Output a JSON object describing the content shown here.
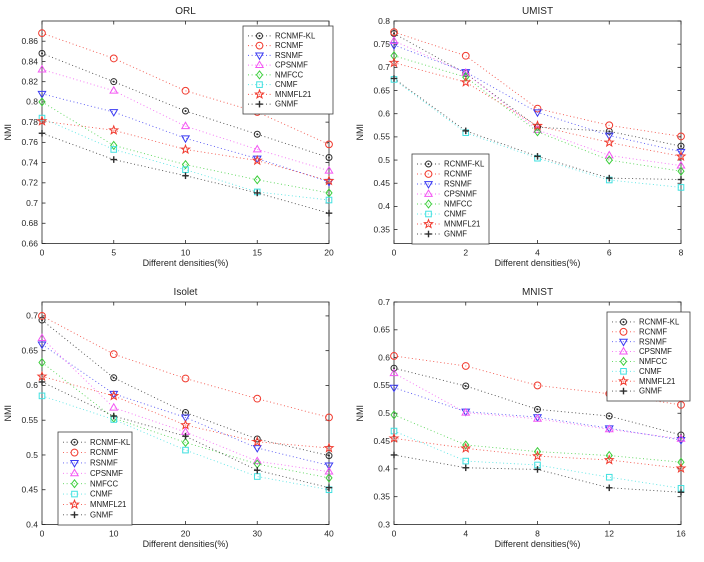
{
  "figure": {
    "background": "#ffffff",
    "axis_color": "#262626",
    "tick_label_color": "#262626",
    "legend_border_color": "#404040",
    "series_styles": [
      {
        "name": "RCNMF-KL",
        "color": "#2e2e2e",
        "marker": "circledot"
      },
      {
        "name": "RCNMF",
        "color": "#f13a2e",
        "marker": "circle"
      },
      {
        "name": "RSNMF",
        "color": "#3a3af2",
        "marker": "triangle-down"
      },
      {
        "name": "CPSNMF",
        "color": "#f356f3",
        "marker": "triangle-up"
      },
      {
        "name": "NMFCC",
        "color": "#3ccf3c",
        "marker": "diamond"
      },
      {
        "name": "CNMF",
        "color": "#40e0e0",
        "marker": "square"
      },
      {
        "name": "MNMFL21",
        "color": "#f13a2e",
        "marker": "star"
      },
      {
        "name": "GNMF",
        "color": "#2e2e2e",
        "marker": "plus"
      }
    ]
  },
  "chart_data": [
    {
      "type": "line",
      "title": "ORL",
      "xlabel": "Different densities(%)",
      "ylabel": "NMI",
      "x": [
        0,
        5,
        10,
        15,
        20
      ],
      "xticks": [
        0,
        5,
        10,
        15,
        20
      ],
      "yticks": [
        0.66,
        0.68,
        0.7,
        0.72,
        0.74,
        0.76,
        0.78,
        0.8,
        0.82,
        0.84,
        0.86
      ],
      "xlim": [
        0,
        20
      ],
      "ylim": [
        0.66,
        0.88
      ],
      "grid": false,
      "line_style": "dotted",
      "legend_pos": "northeast",
      "legend_box": [
        243,
        26,
        90,
        88
      ],
      "series": [
        {
          "name": "RCNMF-KL",
          "values": [
            0.848,
            0.82,
            0.791,
            0.768,
            0.745
          ]
        },
        {
          "name": "RCNMF",
          "values": [
            0.868,
            0.843,
            0.811,
            0.79,
            0.758
          ]
        },
        {
          "name": "RSNMF",
          "values": [
            0.808,
            0.79,
            0.764,
            0.744,
            0.721
          ]
        },
        {
          "name": "CPSNMF",
          "values": [
            0.832,
            0.811,
            0.776,
            0.753,
            0.732
          ]
        },
        {
          "name": "NMFCC",
          "values": [
            0.8,
            0.757,
            0.738,
            0.723,
            0.71
          ]
        },
        {
          "name": "CNMF",
          "values": [
            0.784,
            0.753,
            0.733,
            0.711,
            0.703
          ]
        },
        {
          "name": "MNMFL21",
          "values": [
            0.781,
            0.772,
            0.753,
            0.742,
            0.722
          ]
        },
        {
          "name": "GNMF",
          "values": [
            0.769,
            0.743,
            0.727,
            0.71,
            0.69
          ]
        }
      ]
    },
    {
      "type": "line",
      "title": "UMIST",
      "xlabel": "Different densities(%)",
      "ylabel": "NMI",
      "x": [
        0,
        2,
        4,
        6,
        8
      ],
      "xticks": [
        0,
        2,
        4,
        6,
        8
      ],
      "yticks": [
        0.35,
        0.4,
        0.45,
        0.5,
        0.55,
        0.6,
        0.65,
        0.7,
        0.75,
        0.8
      ],
      "xlim": [
        0,
        8
      ],
      "ylim": [
        0.32,
        0.8
      ],
      "grid": false,
      "line_style": "dotted",
      "legend_pos": "west",
      "legend_box": [
        60,
        154,
        77,
        90
      ],
      "series": [
        {
          "name": "RCNMF-KL",
          "values": [
            0.773,
            0.687,
            0.571,
            0.562,
            0.53
          ]
        },
        {
          "name": "RCNMF",
          "values": [
            0.776,
            0.725,
            0.611,
            0.575,
            0.551
          ]
        },
        {
          "name": "RSNMF",
          "values": [
            0.748,
            0.69,
            0.603,
            0.553,
            0.518
          ]
        },
        {
          "name": "CPSNMF",
          "values": [
            0.757,
            0.688,
            0.565,
            0.51,
            0.488
          ]
        },
        {
          "name": "NMFCC",
          "values": [
            0.725,
            0.679,
            0.561,
            0.5,
            0.476
          ]
        },
        {
          "name": "CNMF",
          "values": [
            0.674,
            0.559,
            0.504,
            0.457,
            0.441
          ]
        },
        {
          "name": "MNMFL21",
          "values": [
            0.71,
            0.668,
            0.574,
            0.538,
            0.508
          ]
        },
        {
          "name": "GNMF",
          "values": [
            0.676,
            0.563,
            0.508,
            0.461,
            0.458
          ]
        }
      ]
    },
    {
      "type": "line",
      "title": "Isolet",
      "xlabel": "Different densities(%)",
      "ylabel": "NMI",
      "x": [
        0,
        10,
        20,
        30,
        40
      ],
      "xticks": [
        0,
        10,
        20,
        30,
        40
      ],
      "yticks": [
        0.4,
        0.45,
        0.5,
        0.55,
        0.6,
        0.65,
        0.7
      ],
      "xlim": [
        0,
        40
      ],
      "ylim": [
        0.4,
        0.72
      ],
      "grid": false,
      "line_style": "dotted",
      "legend_pos": "southwest",
      "legend_box": [
        58,
        151,
        74,
        93
      ],
      "series": [
        {
          "name": "RCNMF-KL",
          "values": [
            0.694,
            0.611,
            0.561,
            0.523,
            0.499
          ]
        },
        {
          "name": "RCNMF",
          "values": [
            0.7,
            0.645,
            0.61,
            0.581,
            0.554
          ]
        },
        {
          "name": "RSNMF",
          "values": [
            0.659,
            0.588,
            0.554,
            0.51,
            0.485
          ]
        },
        {
          "name": "CPSNMF",
          "values": [
            0.668,
            0.568,
            0.533,
            0.491,
            0.476
          ]
        },
        {
          "name": "NMFCC",
          "values": [
            0.633,
            0.553,
            0.518,
            0.487,
            0.467
          ]
        },
        {
          "name": "CNMF",
          "values": [
            0.585,
            0.551,
            0.507,
            0.469,
            0.45
          ]
        },
        {
          "name": "MNMFL21",
          "values": [
            0.613,
            0.585,
            0.543,
            0.519,
            0.51
          ]
        },
        {
          "name": "GNMF",
          "values": [
            0.605,
            0.556,
            0.527,
            0.478,
            0.453
          ]
        }
      ]
    },
    {
      "type": "line",
      "title": "MNIST",
      "xlabel": "Different densities(%)",
      "ylabel": "NMI",
      "x": [
        0,
        4,
        8,
        12,
        16
      ],
      "xticks": [
        0,
        4,
        8,
        12,
        16
      ],
      "yticks": [
        0.3,
        0.35,
        0.4,
        0.45,
        0.5,
        0.55,
        0.6,
        0.65,
        0.7
      ],
      "xlim": [
        0,
        16
      ],
      "ylim": [
        0.3,
        0.7
      ],
      "grid": false,
      "line_style": "dotted",
      "legend_pos": "northeast",
      "legend_box": [
        255,
        31,
        83,
        89
      ],
      "series": [
        {
          "name": "RCNMF-KL",
          "values": [
            0.581,
            0.549,
            0.507,
            0.495,
            0.461
          ]
        },
        {
          "name": "RCNMF",
          "values": [
            0.603,
            0.585,
            0.55,
            0.535,
            0.515
          ]
        },
        {
          "name": "RSNMF",
          "values": [
            0.546,
            0.503,
            0.493,
            0.473,
            0.452
          ]
        },
        {
          "name": "CPSNMF",
          "values": [
            0.572,
            0.501,
            0.49,
            0.471,
            0.454
          ]
        },
        {
          "name": "NMFCC",
          "values": [
            0.497,
            0.443,
            0.431,
            0.424,
            0.412
          ]
        },
        {
          "name": "CNMF",
          "values": [
            0.468,
            0.414,
            0.407,
            0.385,
            0.365
          ]
        },
        {
          "name": "MNMFL21",
          "values": [
            0.455,
            0.437,
            0.423,
            0.416,
            0.401
          ]
        },
        {
          "name": "GNMF",
          "values": [
            0.425,
            0.402,
            0.399,
            0.366,
            0.358
          ]
        }
      ]
    }
  ]
}
